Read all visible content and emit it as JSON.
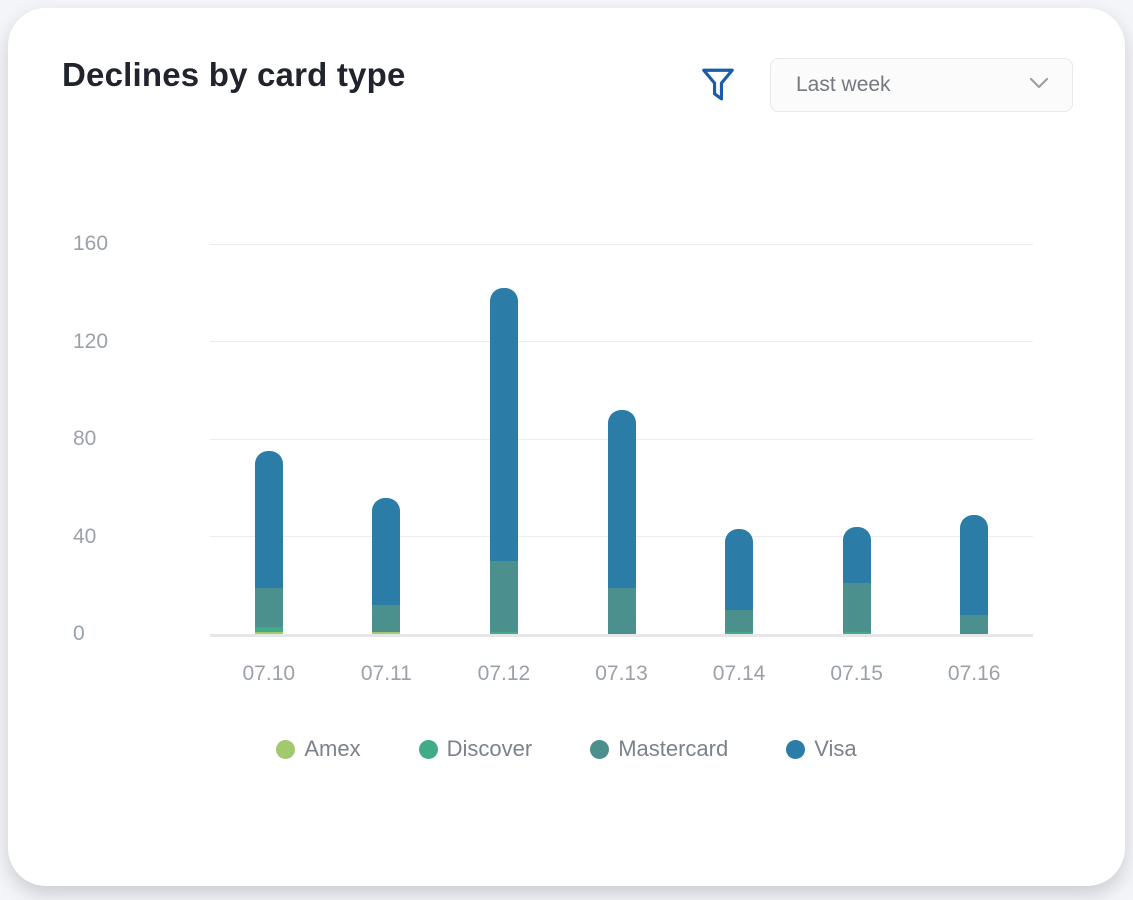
{
  "header": {
    "title": "Declines by card type",
    "filter_icon": "funnel-icon",
    "period_selector": {
      "value": "Last week",
      "chevron_icon": "chevron-down-icon"
    }
  },
  "chart_data": {
    "type": "bar",
    "stacked": true,
    "title": "Declines by card type",
    "categories": [
      "07.10",
      "07.11",
      "07.12",
      "07.13",
      "07.14",
      "07.15",
      "07.16"
    ],
    "series": [
      {
        "name": "Amex",
        "color": "#a3c96e",
        "values": [
          1,
          1,
          0,
          0,
          0,
          0,
          0
        ]
      },
      {
        "name": "Discover",
        "color": "#41ab88",
        "values": [
          2,
          0,
          1,
          0,
          1,
          1,
          0
        ]
      },
      {
        "name": "Mastercard",
        "color": "#4b908c",
        "values": [
          16,
          11,
          29,
          19,
          9,
          20,
          8
        ]
      },
      {
        "name": "Visa",
        "color": "#2b7ca7",
        "values": [
          56,
          44,
          112,
          73,
          33,
          23,
          41
        ]
      }
    ],
    "totals": [
      75,
      56,
      142,
      92,
      43,
      44,
      49
    ],
    "yticks": [
      0,
      40,
      80,
      120,
      160
    ],
    "ylim": [
      0,
      160
    ],
    "xlabel": "",
    "ylabel": "",
    "grid": true,
    "legend_position": "bottom"
  },
  "colors": {
    "filter_icon": "#1a5ca8",
    "title_text": "#21242c",
    "axis_text": "#9ba1a8",
    "legend_text": "#7b828a",
    "gridline": "#ececef",
    "card_background": "#ffffff",
    "page_background": "#f4f5f8"
  }
}
